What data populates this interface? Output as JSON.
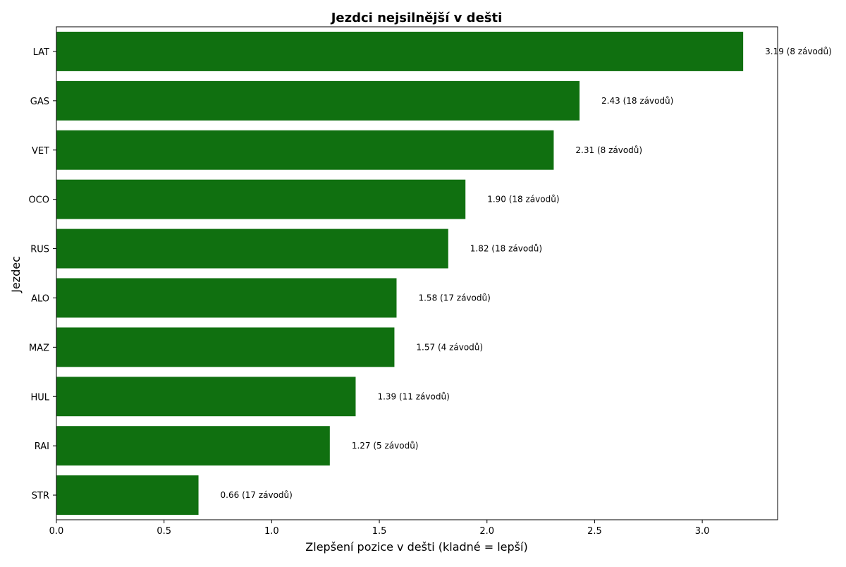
{
  "chart_data": {
    "type": "bar",
    "orientation": "horizontal",
    "title": "Jezdci nejsilnější v dešti",
    "xlabel": "Zlepšení pozice v dešti (kladné = lepší)",
    "ylabel": "Jezdec",
    "xlim": [
      0,
      3.35
    ],
    "xticks": [
      "0.0",
      "0.5",
      "1.0",
      "1.5",
      "2.0",
      "2.5",
      "3.0"
    ],
    "categories": [
      "LAT",
      "GAS",
      "VET",
      "OCO",
      "RUS",
      "ALO",
      "MAZ",
      "HUL",
      "RAI",
      "STR"
    ],
    "values": [
      3.19,
      2.43,
      2.31,
      1.9,
      1.82,
      1.58,
      1.57,
      1.39,
      1.27,
      0.66
    ],
    "labels": [
      "3.19 (8 závodů)",
      "2.43 (18 závodů)",
      "2.31 (8 závodů)",
      "1.90 (18 závodů)",
      "1.82 (18 závodů)",
      "1.58 (17 závodů)",
      "1.57 (4 závodů)",
      "1.39 (11 závodů)",
      "1.27 (5 závodů)",
      "0.66 (17 závodů)"
    ],
    "bar_color": "#107010",
    "grid": false
  }
}
